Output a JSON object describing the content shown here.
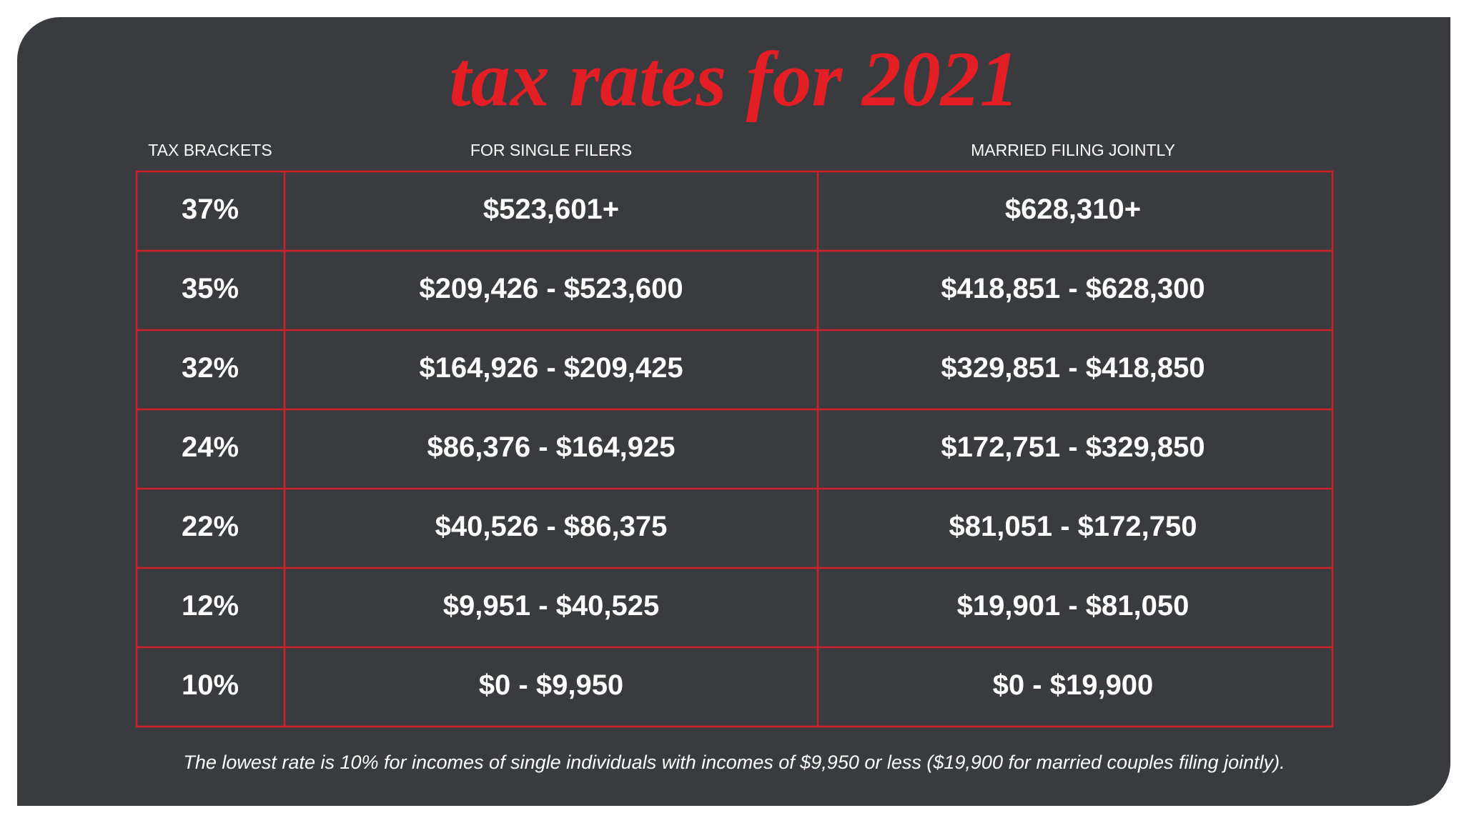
{
  "title": "tax rates for 2021",
  "table": {
    "headers": [
      "TAX BRACKETS",
      "FOR SINGLE FILERS",
      "MARRIED FILING JOINTLY"
    ],
    "rows": [
      [
        "37%",
        "$523,601+",
        "$628,310+"
      ],
      [
        "35%",
        "$209,426 - $523,600",
        "$418,851 - $628,300"
      ],
      [
        "32%",
        "$164,926 - $209,425",
        "$329,851 - $418,850"
      ],
      [
        "24%",
        "$86,376 - $164,925",
        "$172,751 - $329,850"
      ],
      [
        "22%",
        "$40,526 - $86,375",
        "$81,051 - $172,750"
      ],
      [
        "12%",
        "$9,951 - $40,525",
        "$19,901 - $81,050"
      ],
      [
        "10%",
        "$0 - $9,950",
        "$0 - $19,900"
      ]
    ]
  },
  "footnote": "The lowest rate is 10% for incomes of single individuals with incomes of $9,950 or less ($19,900 for married couples filing jointly)."
}
